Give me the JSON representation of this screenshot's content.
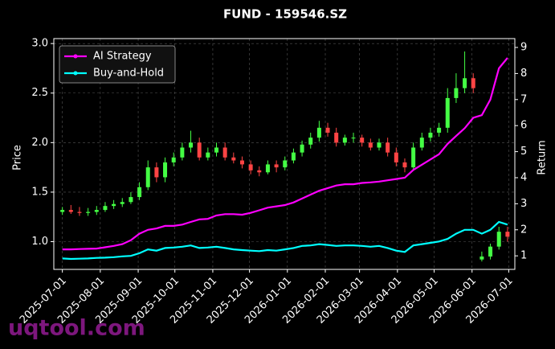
{
  "chart_data": {
    "type": "candlestick",
    "title": "FUND - 159546.SZ",
    "y_label": "Price",
    "y2_label": "Return",
    "watermark": "uqtool.com",
    "up_color": "#44ff44",
    "down_color": "#ff4444",
    "grid": true,
    "legend": "upper-left",
    "x": [
      "2025-07-01",
      "2025-07-08",
      "2025-07-15",
      "2025-07-22",
      "2025-07-29",
      "2025-08-05",
      "2025-08-12",
      "2025-08-19",
      "2025-08-26",
      "2025-09-02",
      "2025-09-09",
      "2025-09-16",
      "2025-09-23",
      "2025-09-30",
      "2025-10-07",
      "2025-10-14",
      "2025-10-21",
      "2025-10-28",
      "2025-11-04",
      "2025-11-11",
      "2025-11-18",
      "2025-11-25",
      "2025-12-02",
      "2025-12-09",
      "2025-12-16",
      "2025-12-23",
      "2025-12-30",
      "2026-01-06",
      "2026-01-13",
      "2026-01-20",
      "2026-01-27",
      "2026-02-03",
      "2026-02-10",
      "2026-02-17",
      "2026-02-24",
      "2026-03-03",
      "2026-03-10",
      "2026-03-17",
      "2026-03-24",
      "2026-03-31",
      "2026-04-07",
      "2026-04-14",
      "2026-04-21",
      "2026-04-28",
      "2026-05-05",
      "2026-05-12",
      "2026-05-19",
      "2026-05-26",
      "2026-06-02",
      "2026-06-09",
      "2026-06-16",
      "2026-06-23",
      "2026-06-30"
    ],
    "open": [
      1.3,
      1.32,
      1.3,
      1.29,
      1.3,
      1.32,
      1.36,
      1.38,
      1.4,
      1.45,
      1.55,
      1.75,
      1.65,
      1.8,
      1.85,
      1.95,
      2.0,
      1.85,
      1.9,
      1.95,
      1.85,
      1.82,
      1.78,
      1.72,
      1.7,
      1.78,
      1.75,
      1.82,
      1.9,
      1.98,
      2.05,
      2.15,
      2.1,
      2.0,
      2.05,
      2.05,
      2.0,
      1.95,
      2.0,
      1.9,
      1.8,
      1.75,
      1.95,
      2.05,
      2.1,
      2.15,
      2.45,
      2.55,
      2.65,
      0.82,
      0.85,
      0.95,
      1.1
    ],
    "high": [
      1.35,
      1.37,
      1.35,
      1.34,
      1.36,
      1.4,
      1.42,
      1.44,
      1.5,
      1.6,
      1.82,
      1.8,
      1.85,
      1.9,
      2.0,
      2.12,
      2.05,
      1.95,
      2.0,
      2.0,
      1.9,
      1.86,
      1.82,
      1.76,
      1.82,
      1.82,
      1.86,
      1.94,
      2.02,
      2.1,
      2.22,
      2.2,
      2.15,
      2.08,
      2.1,
      2.08,
      2.04,
      2.04,
      2.05,
      1.95,
      1.84,
      2.0,
      2.1,
      2.15,
      2.2,
      2.55,
      2.7,
      2.92,
      2.7,
      0.9,
      0.98,
      1.15,
      1.15
    ],
    "low": [
      1.27,
      1.28,
      1.26,
      1.26,
      1.27,
      1.3,
      1.33,
      1.35,
      1.38,
      1.42,
      1.52,
      1.6,
      1.6,
      1.76,
      1.82,
      1.9,
      1.82,
      1.82,
      1.86,
      1.82,
      1.79,
      1.74,
      1.68,
      1.66,
      1.68,
      1.7,
      1.72,
      1.79,
      1.86,
      1.94,
      2.01,
      2.06,
      1.96,
      1.97,
      2.0,
      1.96,
      1.92,
      1.92,
      1.86,
      1.76,
      1.7,
      1.72,
      1.92,
      2.01,
      2.06,
      2.1,
      2.4,
      2.5,
      2.5,
      0.8,
      0.82,
      0.92,
      1.0
    ],
    "close": [
      1.32,
      1.3,
      1.29,
      1.3,
      1.32,
      1.36,
      1.38,
      1.4,
      1.45,
      1.55,
      1.75,
      1.65,
      1.8,
      1.85,
      1.95,
      2.0,
      1.85,
      1.9,
      1.95,
      1.85,
      1.82,
      1.78,
      1.72,
      1.7,
      1.78,
      1.75,
      1.82,
      1.9,
      1.98,
      2.05,
      2.15,
      2.1,
      2.0,
      2.05,
      2.05,
      2.0,
      1.95,
      2.0,
      1.9,
      1.8,
      1.75,
      1.95,
      2.05,
      2.1,
      2.15,
      2.45,
      2.55,
      2.65,
      2.55,
      0.85,
      0.95,
      1.1,
      1.05
    ],
    "series": [
      {
        "name": "AI Strategy",
        "color": "#ff00ff",
        "axis": "y2",
        "values": [
          1.25,
          1.25,
          1.26,
          1.27,
          1.28,
          1.33,
          1.38,
          1.45,
          1.6,
          1.85,
          2.0,
          2.05,
          2.15,
          2.15,
          2.2,
          2.3,
          2.4,
          2.42,
          2.55,
          2.6,
          2.6,
          2.58,
          2.65,
          2.75,
          2.85,
          2.9,
          2.95,
          3.05,
          3.2,
          3.35,
          3.5,
          3.6,
          3.7,
          3.75,
          3.75,
          3.8,
          3.82,
          3.85,
          3.9,
          3.95,
          4.0,
          4.3,
          4.5,
          4.7,
          4.9,
          5.3,
          5.6,
          5.9,
          6.3,
          6.4,
          7.0,
          8.2,
          8.6
        ]
      },
      {
        "name": "Buy-and-Hold",
        "color": "#00ffff",
        "axis": "y2",
        "values": [
          0.9,
          0.88,
          0.89,
          0.9,
          0.92,
          0.93,
          0.95,
          0.98,
          1.0,
          1.1,
          1.25,
          1.2,
          1.3,
          1.32,
          1.35,
          1.4,
          1.3,
          1.32,
          1.35,
          1.3,
          1.25,
          1.22,
          1.2,
          1.18,
          1.22,
          1.2,
          1.25,
          1.3,
          1.38,
          1.4,
          1.45,
          1.42,
          1.38,
          1.4,
          1.4,
          1.38,
          1.35,
          1.38,
          1.3,
          1.2,
          1.15,
          1.4,
          1.45,
          1.5,
          1.55,
          1.65,
          1.85,
          2.0,
          2.0,
          1.85,
          2.0,
          2.3,
          2.2
        ]
      }
    ],
    "xlim": [
      "2025-06-24",
      "2026-07-06"
    ],
    "xticks": [
      "2025-07-01",
      "2025-08-01",
      "2025-09-01",
      "2025-10-01",
      "2025-11-01",
      "2025-12-01",
      "2026-01-01",
      "2026-02-01",
      "2026-03-01",
      "2026-04-01",
      "2026-05-01",
      "2026-06-01",
      "2026-07-01"
    ],
    "ylim": [
      0.72,
      3.05
    ],
    "yticks": [
      {
        "value": 1,
        "label": "1.0"
      },
      {
        "value": 1.5,
        "label": "1.5"
      },
      {
        "value": 2,
        "label": "2.0"
      },
      {
        "value": 2.5,
        "label": "2.5"
      },
      {
        "value": 3,
        "label": "3.0"
      }
    ],
    "y2lim": [
      0.48,
      9.34
    ],
    "y2ticks": [
      1,
      2,
      3,
      4,
      5,
      6,
      7,
      8,
      9
    ]
  }
}
